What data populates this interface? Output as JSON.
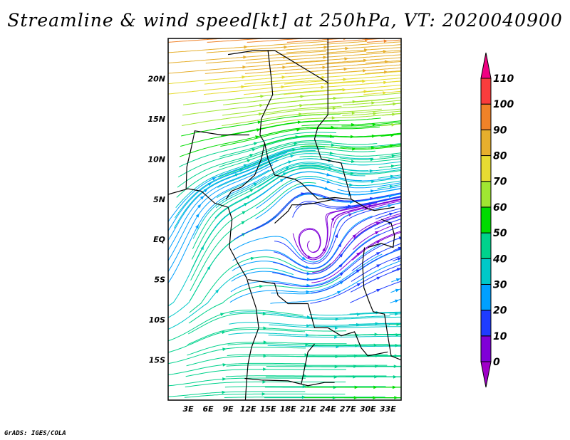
{
  "title": "Streamline & wind speed[kt] at 250hPa, VT: 2020040900",
  "credit": "GrADS: IGES/COLA",
  "chart_data": {
    "type": "streamline-map",
    "title": "Streamline & wind speed[kt] at 250hPa, VT: 2020040900",
    "variable": "wind speed",
    "units": "kt",
    "level": "250hPa",
    "valid_time": "2020040900",
    "lon_range": [
      0,
      35
    ],
    "lat_range": [
      -20,
      25
    ],
    "x_ticks": [
      {
        "value": 3,
        "label": "3E"
      },
      {
        "value": 6,
        "label": "6E"
      },
      {
        "value": 9,
        "label": "9E"
      },
      {
        "value": 12,
        "label": "12E"
      },
      {
        "value": 15,
        "label": "15E"
      },
      {
        "value": 18,
        "label": "18E"
      },
      {
        "value": 21,
        "label": "21E"
      },
      {
        "value": 24,
        "label": "24E"
      },
      {
        "value": 27,
        "label": "27E"
      },
      {
        "value": 30,
        "label": "30E"
      },
      {
        "value": 33,
        "label": "33E"
      }
    ],
    "y_ticks": [
      {
        "value": 20,
        "label": "20N"
      },
      {
        "value": 15,
        "label": "15N"
      },
      {
        "value": 10,
        "label": "10N"
      },
      {
        "value": 5,
        "label": "5N"
      },
      {
        "value": 0,
        "label": "EQ"
      },
      {
        "value": -5,
        "label": "5S"
      },
      {
        "value": -10,
        "label": "10S"
      },
      {
        "value": -15,
        "label": "15S"
      }
    ],
    "colorbar": {
      "levels": [
        "0",
        "10",
        "20",
        "30",
        "40",
        "50",
        "60",
        "70",
        "80",
        "90",
        "100",
        "110"
      ],
      "colors": [
        "#8000d8",
        "#1e3cff",
        "#00a0ff",
        "#00c8c8",
        "#00d28c",
        "#00dc00",
        "#a0e632",
        "#e6dc32",
        "#e6af2d",
        "#f08228",
        "#fa3c3c",
        "#f00082"
      ],
      "under_color": "#a000c8",
      "over_color": "#f00082"
    }
  }
}
